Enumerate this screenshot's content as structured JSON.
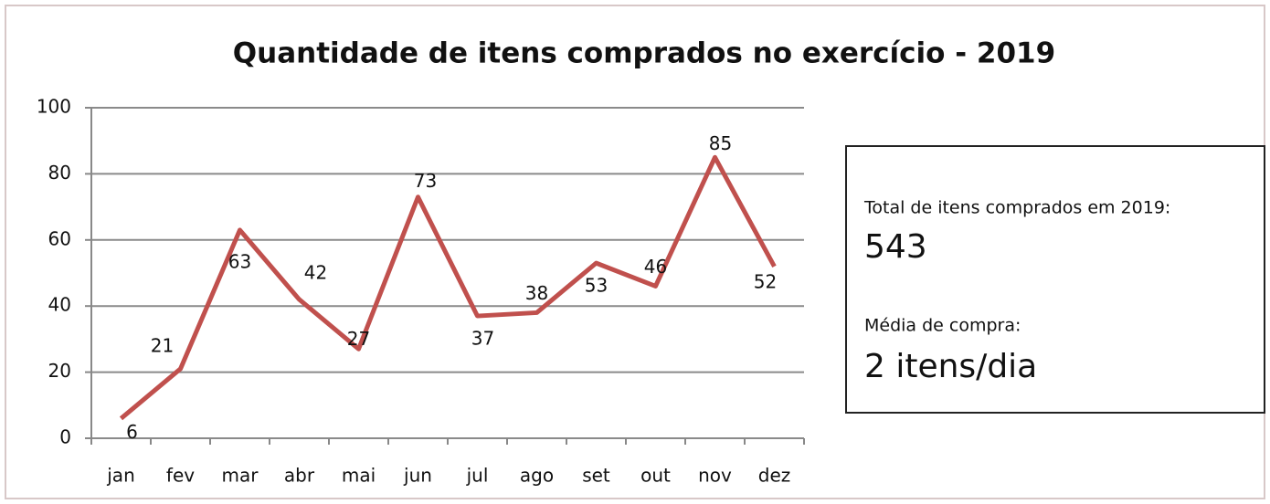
{
  "chart_data": {
    "type": "line",
    "title": "Quantidade de itens comprados no exercício - 2019",
    "categories": [
      "jan",
      "fev",
      "mar",
      "abr",
      "mai",
      "jun",
      "jul",
      "ago",
      "set",
      "out",
      "nov",
      "dez"
    ],
    "series": [
      {
        "name": "Quantidade",
        "color": "#c0504d",
        "values": [
          6,
          21,
          63,
          42,
          27,
          73,
          37,
          38,
          53,
          46,
          85,
          52
        ]
      }
    ],
    "ylim": [
      0,
      100
    ],
    "yticks": [
      0,
      20,
      40,
      60,
      80,
      100
    ],
    "grid": true,
    "annotations": [
      "Total de itens comprados em 2019:",
      "543",
      "Média de compra:",
      "2 itens/dia"
    ]
  }
}
